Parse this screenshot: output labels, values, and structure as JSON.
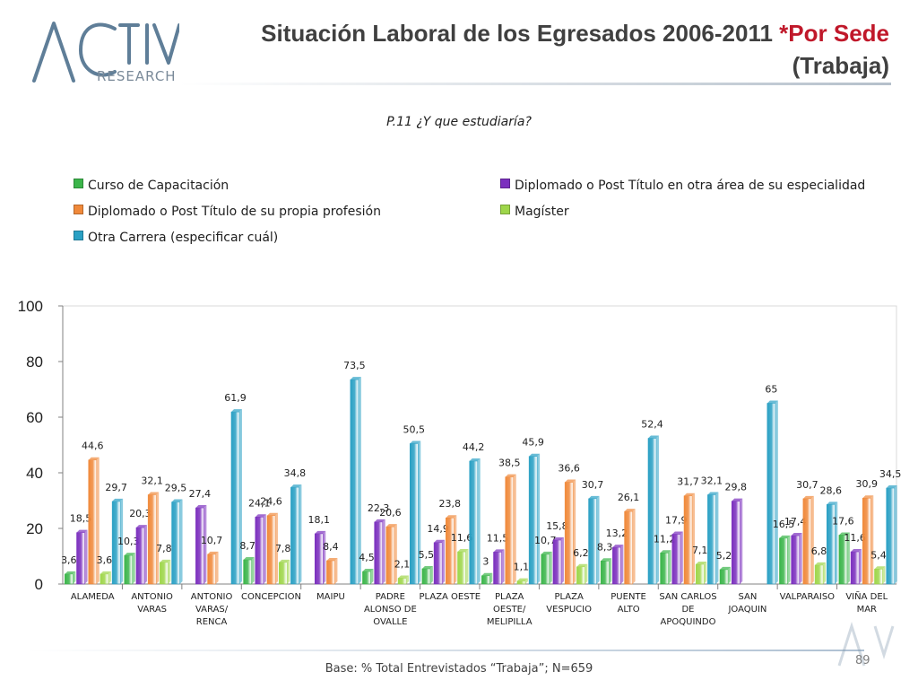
{
  "brand": {
    "logo_text": "ACTIVA",
    "logo_subtext": "RESEARCH"
  },
  "header": {
    "title_main": "Situación Laboral de los Egresados 2006-2011",
    "title_accent": "*Por Sede",
    "title_line2": "(Trabaja)"
  },
  "question": "P.11 ¿Y que estudiaría?",
  "footer": {
    "base": "Base: % Total Entrevistados “Trabaja”; N=659",
    "page_number": "89"
  },
  "chart_data": {
    "type": "bar",
    "categories": [
      "ALAMEDA",
      "ANTONIO VARAS",
      "ANTONIO VARAS/ RENCA",
      "CONCEPCION",
      "MAIPU",
      "PADRE ALONSO DE OVALLE",
      "PLAZA OESTE",
      "PLAZA OESTE/ MELIPILLA",
      "PLAZA VESPUCIO",
      "PUENTE ALTO",
      "SAN CARLOS DE APOQUINDO",
      "SAN JOAQUIN",
      "VALPARAISO",
      "VIÑA DEL MAR"
    ],
    "category_lines": [
      [
        "ALAMEDA"
      ],
      [
        "ANTONIO",
        "VARAS"
      ],
      [
        "ANTONIO",
        "VARAS/",
        "RENCA"
      ],
      [
        "CONCEPCION"
      ],
      [
        "MAIPU"
      ],
      [
        "PADRE",
        "ALONSO DE",
        "OVALLE"
      ],
      [
        "PLAZA OESTE"
      ],
      [
        "PLAZA",
        "OESTE/",
        "MELIPILLA"
      ],
      [
        "PLAZA",
        "VESPUCIO"
      ],
      [
        "PUENTE",
        "ALTO"
      ],
      [
        "SAN CARLOS",
        "DE",
        "APOQUINDO"
      ],
      [
        "SAN",
        "JOAQUIN"
      ],
      [
        "VALPARAISO"
      ],
      [
        "VIÑA DEL",
        "MAR"
      ]
    ],
    "series": [
      {
        "name": "Curso de Capacitación",
        "color": "#3bb54a",
        "values": [
          3.6,
          10.3,
          null,
          8.7,
          null,
          4.5,
          5.5,
          3,
          10.7,
          8.3,
          11.2,
          5.2,
          16.5,
          17.6
        ],
        "labels": [
          "3,6",
          "10,3",
          null,
          "8,7",
          null,
          "4,5",
          "5,5",
          "3",
          "10,7",
          "8,3",
          "11,2",
          "5,2",
          "16,5",
          "17,6"
        ]
      },
      {
        "name": "Diplomado o Post Título en otra área de su especialidad",
        "color": "#7b2fbe",
        "values": [
          18.5,
          20.3,
          27.4,
          24.1,
          18.1,
          22.3,
          14.9,
          11.5,
          15.8,
          13.2,
          17.9,
          29.8,
          17.4,
          11.6
        ],
        "labels": [
          "18,5",
          "20,3",
          "27,4",
          "24,1",
          "18,1",
          "22,3",
          "14,9",
          "11,5",
          "15,8",
          "13,2",
          "17,9",
          "29,8",
          "17,4",
          "11,6"
        ]
      },
      {
        "name": "Diplomado o Post Título de su propia profesión",
        "color": "#f0893a",
        "values": [
          44.6,
          32.1,
          10.7,
          24.6,
          8.4,
          20.6,
          23.8,
          38.5,
          36.6,
          26.1,
          31.7,
          null,
          30.7,
          30.9
        ],
        "labels": [
          "44,6",
          "32,1",
          "10,7",
          "24,6",
          "8,4",
          "20,6",
          "23,8",
          "38,5",
          "36,6",
          "26,1",
          "31,7",
          null,
          "30,7",
          "30,9"
        ]
      },
      {
        "name": "Magíster",
        "color": "#9ed64a",
        "values": [
          3.6,
          7.8,
          null,
          7.8,
          null,
          2.1,
          11.6,
          1.1,
          6.2,
          null,
          7.1,
          null,
          6.8,
          5.4
        ],
        "labels": [
          "3,6",
          "7,8",
          null,
          "7,8",
          null,
          "2,1",
          "11,6",
          "1,1",
          "6,2",
          null,
          "7,1",
          null,
          "6,8",
          "5,4"
        ]
      },
      {
        "name": "Otra Carrera (especificar cuál)",
        "color": "#2aa0c4",
        "values": [
          29.7,
          29.5,
          61.9,
          34.8,
          73.5,
          50.5,
          44.2,
          45.9,
          30.7,
          52.4,
          32.1,
          65,
          28.6,
          34.5
        ],
        "labels": [
          "29,7",
          "29,5",
          "61,9",
          "34,8",
          "73,5",
          "50,5",
          "44,2",
          "45,9",
          "30,7",
          "52,4",
          "32,1",
          "65",
          "28,6",
          "34,5"
        ]
      }
    ],
    "ylim": [
      0,
      100
    ],
    "yticks": [
      0,
      20,
      40,
      60,
      80,
      100
    ],
    "grid": false,
    "legend_position": "top"
  }
}
